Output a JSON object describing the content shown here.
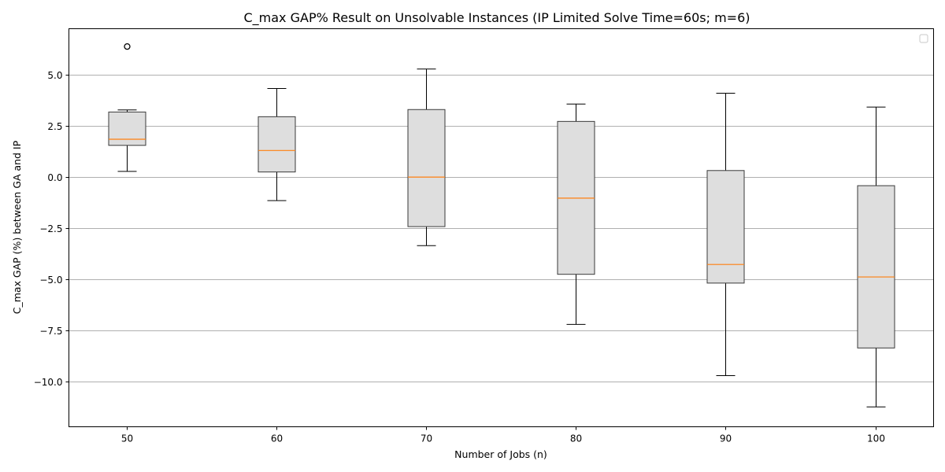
{
  "chart_data": {
    "type": "boxplot",
    "title": "C_max GAP% Result on Unsolvable Instances (IP Limited Solve Time=60s; m=6)",
    "xlabel": "Number of Jobs (n)",
    "ylabel": "C_max GAP (%) between GA and IP",
    "categories": [
      "50",
      "60",
      "70",
      "80",
      "90",
      "100"
    ],
    "ylim": [
      -12.2,
      7.25
    ],
    "yticks": [
      -10.0,
      -7.5,
      -5.0,
      -2.5,
      0.0,
      2.5,
      5.0
    ],
    "ytick_labels": [
      "−10.0",
      "−7.5",
      "−5.0",
      "−2.5",
      "0.0",
      "2.5",
      "5.0"
    ],
    "grid": "horizontal",
    "legend": "top-right (empty)",
    "colors": {
      "box_fill": "#dedede",
      "box_edge": "#3a3a3a",
      "median": "#ff7f0e",
      "whisker": "#000000",
      "grid": "#b0b0b0"
    },
    "boxes": [
      {
        "category": "50",
        "whislo": 0.28,
        "q1": 1.55,
        "median": 1.85,
        "q3": 3.18,
        "whishi": 3.28,
        "fliers": [
          6.38
        ]
      },
      {
        "category": "60",
        "whislo": -1.15,
        "q1": 0.25,
        "median": 1.3,
        "q3": 2.95,
        "whishi": 4.33,
        "fliers": []
      },
      {
        "category": "70",
        "whislo": -3.35,
        "q1": -2.42,
        "median": 0.0,
        "q3": 3.3,
        "whishi": 5.28,
        "fliers": []
      },
      {
        "category": "80",
        "whislo": -7.2,
        "q1": -4.75,
        "median": -1.03,
        "q3": 2.72,
        "whishi": 3.57,
        "fliers": []
      },
      {
        "category": "90",
        "whislo": -9.7,
        "q1": -5.18,
        "median": -4.27,
        "q3": 0.32,
        "whishi": 4.1,
        "fliers": []
      },
      {
        "category": "100",
        "whislo": -11.23,
        "q1": -8.35,
        "median": -4.88,
        "q3": -0.42,
        "whishi": 3.42,
        "fliers": []
      }
    ]
  }
}
